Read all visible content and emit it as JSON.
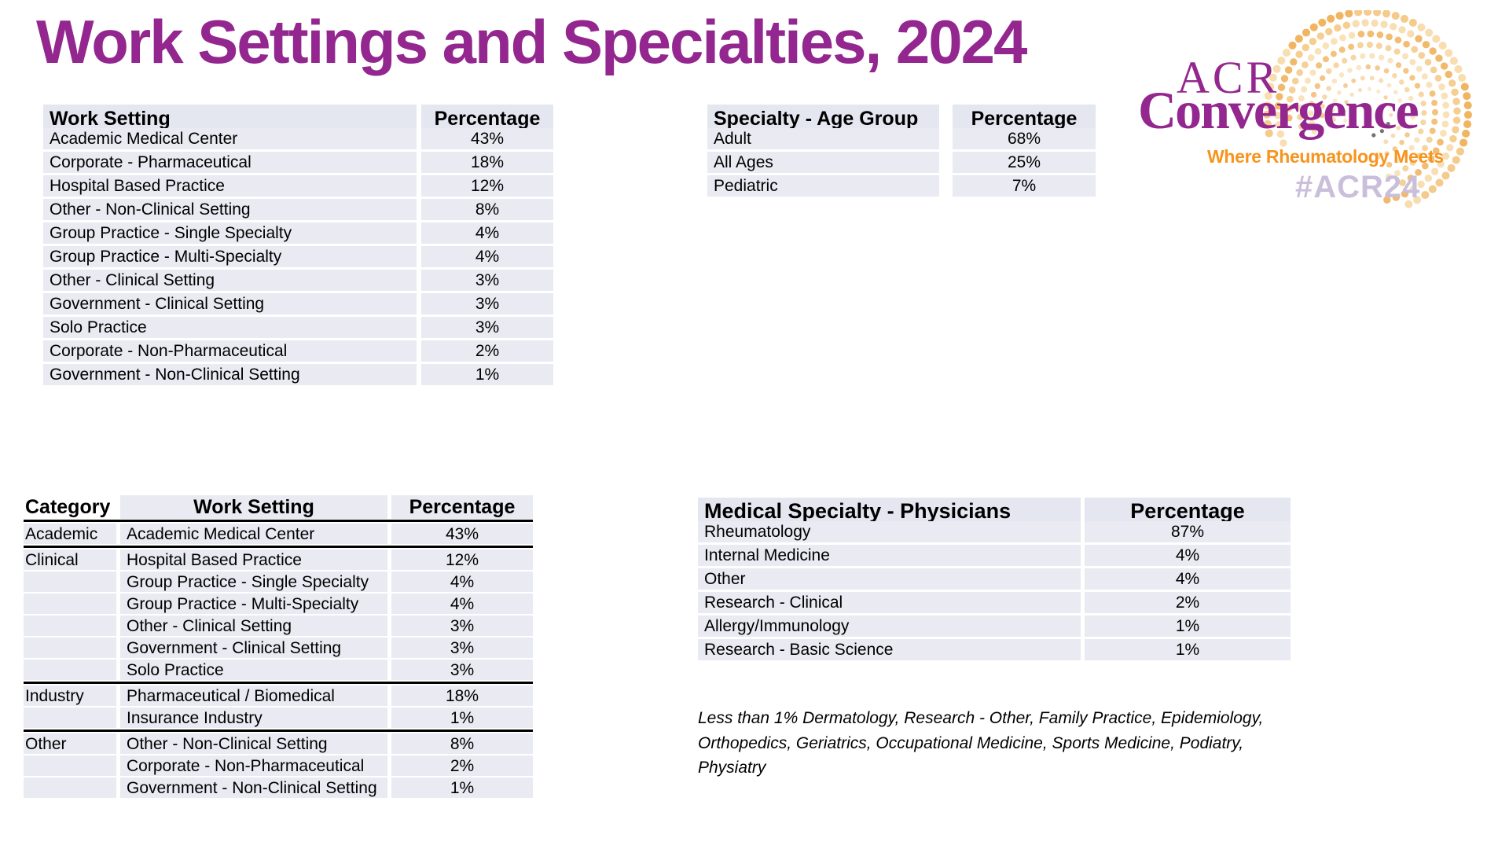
{
  "title": "Work Settings and Specialties, 2024",
  "logo": {
    "acr": "ACR",
    "convergence": "Convergence",
    "tagline": "Where Rheumatology Meets",
    "hashtag": "#ACR24"
  },
  "colors": {
    "brand_purple": "#93278F",
    "brand_orange": "#F7941E",
    "hashtag_lavender": "#C9BFDA",
    "table_row_bg": "#E9EAF2",
    "table_header_bg": "#E4E6F0"
  },
  "tables": {
    "work_setting": {
      "headers": [
        "Work Setting",
        "Percentage"
      ],
      "rows": [
        [
          "Academic Medical Center",
          "43%"
        ],
        [
          "Corporate - Pharmaceutical",
          "18%"
        ],
        [
          "Hospital Based Practice",
          "12%"
        ],
        [
          "Other - Non-Clinical Setting",
          "8%"
        ],
        [
          "Group Practice - Single Specialty",
          "4%"
        ],
        [
          "Group Practice - Multi-Specialty",
          "4%"
        ],
        [
          "Other - Clinical Setting",
          "3%"
        ],
        [
          "Government - Clinical Setting",
          "3%"
        ],
        [
          "Solo Practice",
          "3%"
        ],
        [
          "Corporate - Non-Pharmaceutical",
          "2%"
        ],
        [
          "Government - Non-Clinical Setting",
          "1%"
        ]
      ]
    },
    "age_group": {
      "headers": [
        "Specialty - Age Group",
        "Percentage"
      ],
      "rows": [
        [
          "Adult",
          "68%"
        ],
        [
          "All Ages",
          "25%"
        ],
        [
          "Pediatric",
          "7%"
        ]
      ]
    },
    "categorized": {
      "headers": [
        "Category",
        "Work Setting",
        "Percentage"
      ],
      "groups": [
        {
          "category": "Academic",
          "rows": [
            [
              "Academic Medical Center",
              "43%"
            ]
          ]
        },
        {
          "category": "Clinical",
          "rows": [
            [
              "Hospital Based Practice",
              "12%"
            ],
            [
              "Group Practice - Single Specialty",
              "4%"
            ],
            [
              "Group Practice - Multi-Specialty",
              "4%"
            ],
            [
              "Other - Clinical Setting",
              "3%"
            ],
            [
              "Government - Clinical Setting",
              "3%"
            ],
            [
              "Solo Practice",
              "3%"
            ]
          ]
        },
        {
          "category": "Industry",
          "rows": [
            [
              "Pharmaceutical / Biomedical",
              "18%"
            ],
            [
              "Insurance Industry",
              "1%"
            ]
          ]
        },
        {
          "category": "Other",
          "rows": [
            [
              "Other - Non-Clinical Setting",
              "8%"
            ],
            [
              "Corporate - Non-Pharmaceutical",
              "2%"
            ],
            [
              "Government - Non-Clinical Setting",
              "1%"
            ]
          ]
        }
      ]
    },
    "physicians": {
      "headers": [
        "Medical Specialty - Physicians",
        "Percentage"
      ],
      "rows": [
        [
          "Rheumatology",
          "87%"
        ],
        [
          "Internal Medicine",
          "4%"
        ],
        [
          "Other",
          "4%"
        ],
        [
          "Research - Clinical",
          "2%"
        ],
        [
          "Allergy/Immunology",
          "1%"
        ],
        [
          "Research - Basic Science",
          "1%"
        ]
      ]
    }
  },
  "footnote": {
    "line1": "Less than 1% Dermatology, Research - Other, Family Practice, Epidemiology,",
    "line2": "Orthopedics, Geriatrics, Occupational Medicine, Sports Medicine, Podiatry, Physiatry"
  }
}
